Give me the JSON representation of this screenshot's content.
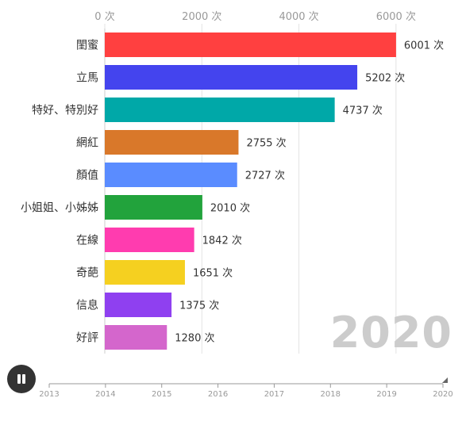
{
  "chart_data": {
    "type": "bar",
    "orientation": "horizontal",
    "categories": [
      "閨蜜",
      "立馬",
      "特好、特別好",
      "網紅",
      "顏值",
      "小姐姐、小姊姊",
      "在線",
      "奇葩",
      "信息",
      "好評"
    ],
    "values": [
      6001,
      5202,
      4737,
      2755,
      2727,
      2010,
      1842,
      1651,
      1375,
      1280
    ],
    "value_labels": [
      "6001 次",
      "5202 次",
      "4737 次",
      "2755 次",
      "2727 次",
      "2010 次",
      "1842 次",
      "1651 次",
      "1375 次",
      "1280 次"
    ],
    "colors": [
      "#ff4040",
      "#4444ee",
      "#00a8a8",
      "#d9782a",
      "#5a8cff",
      "#22a33c",
      "#ff3caf",
      "#f5d020",
      "#8f40f0",
      "#d466cc"
    ],
    "xlim": [
      0,
      7000
    ],
    "x_ticks": [
      0,
      2000,
      4000,
      6000
    ],
    "x_tick_labels": [
      "0 次",
      "2000 次",
      "4000 次",
      "6000 次"
    ],
    "axis_position": "top",
    "grid": true,
    "title": "",
    "xlabel": "",
    "ylabel": ""
  },
  "current_year": "2020",
  "timeline": {
    "years": [
      "2013",
      "2014",
      "2015",
      "2016",
      "2017",
      "2018",
      "2019",
      "2020"
    ],
    "current_index": 7
  },
  "play_button": {
    "state": "playing",
    "icon": "pause-icon"
  }
}
